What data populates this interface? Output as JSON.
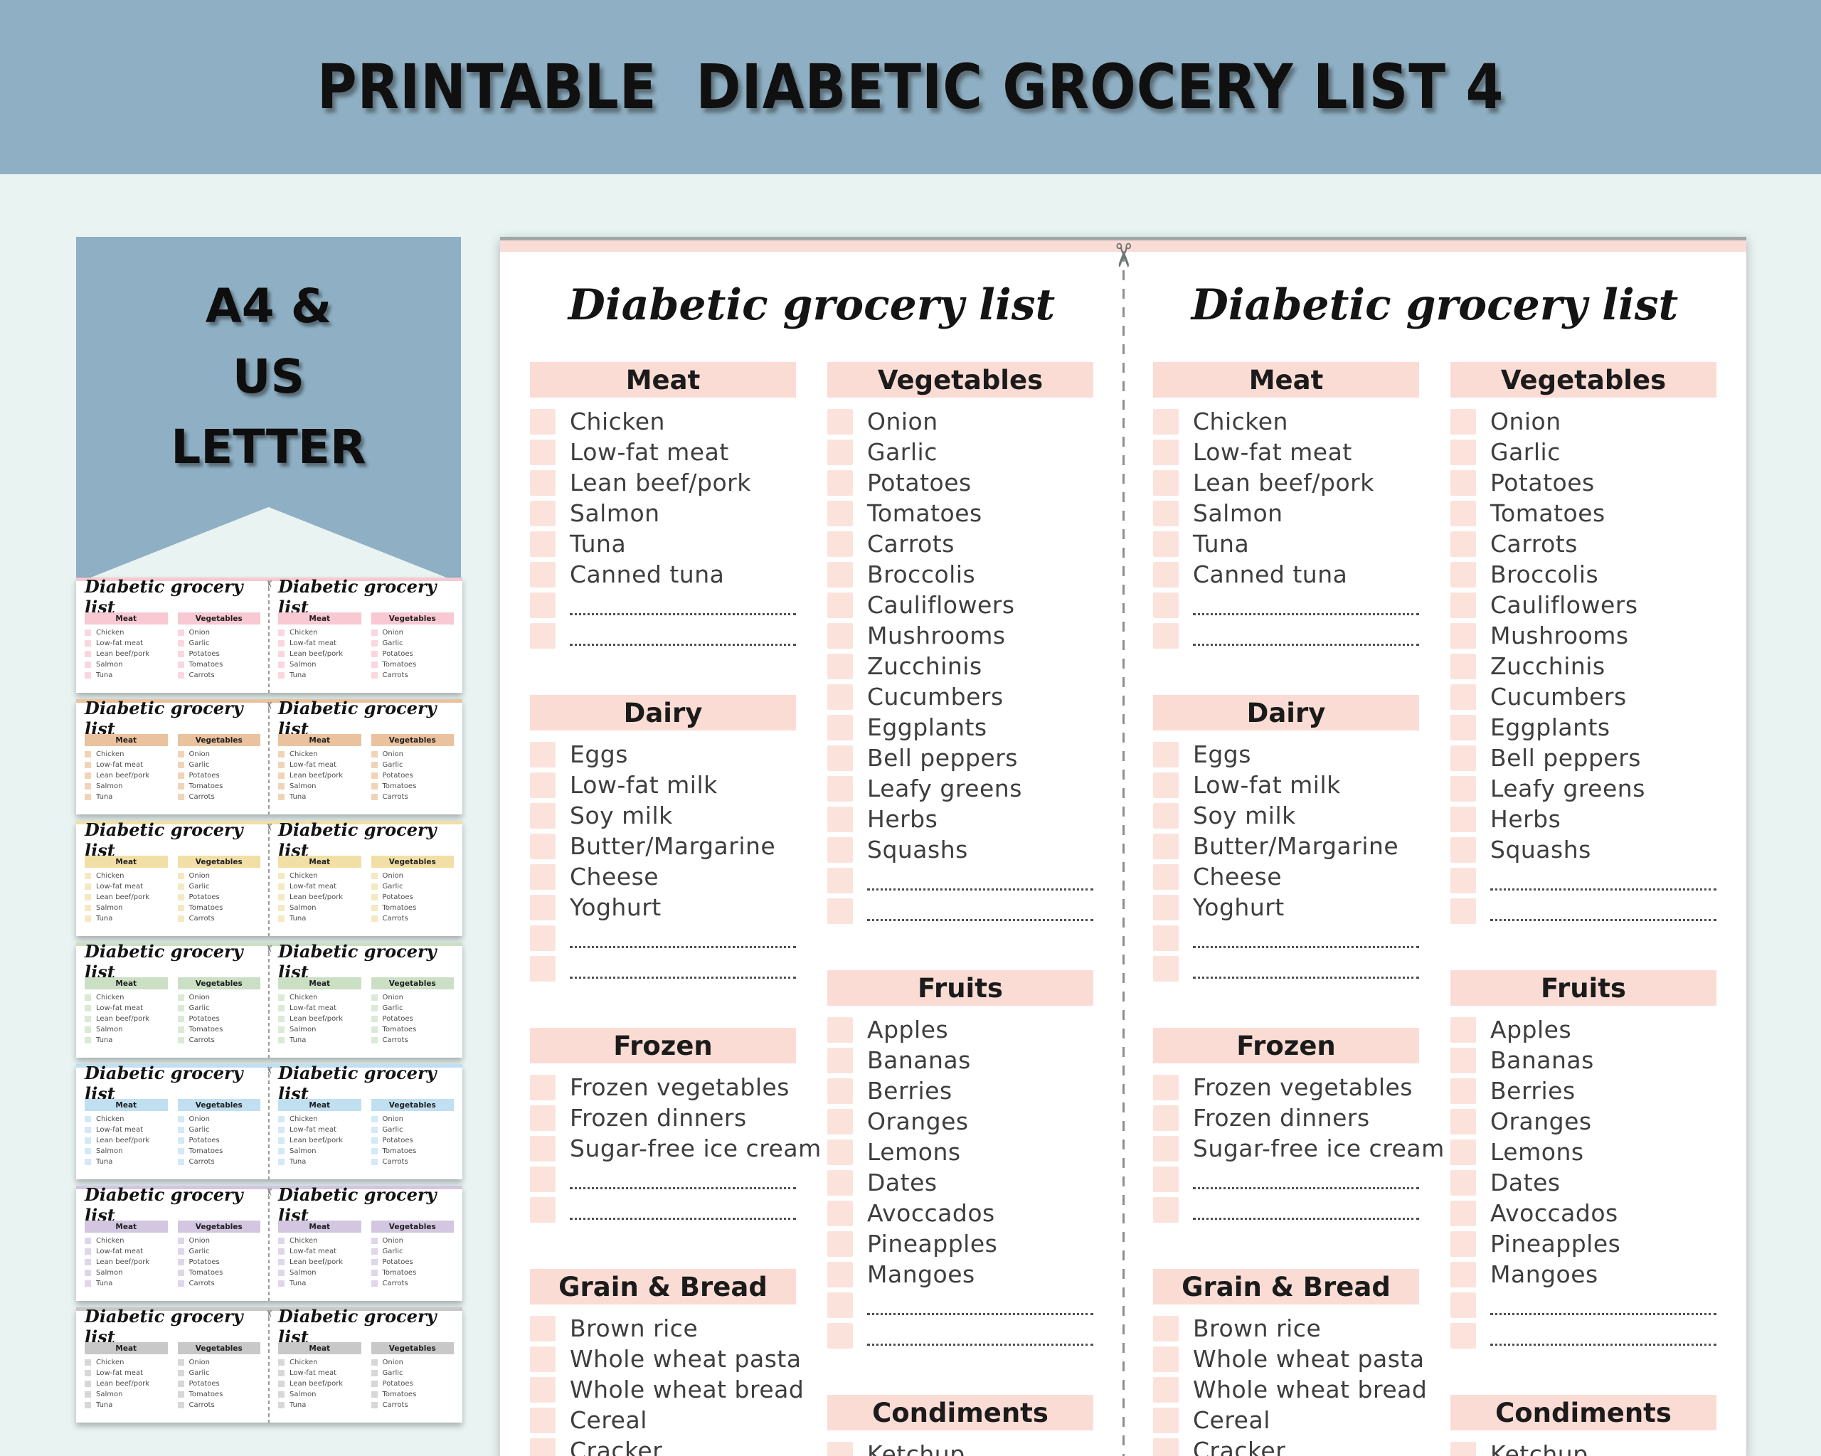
{
  "banner": {
    "title": "PRINTABLE  DIABETIC GROCERY LIST 4"
  },
  "ribbon": {
    "lines": [
      "A4 &",
      "US",
      "LETTER"
    ]
  },
  "icons": {
    "scissors": "✂"
  },
  "colors": {
    "background": "#E8F3F2",
    "banner_bg": "#8FB0C4",
    "ribbon_bg": "#8FB0C4",
    "page_strip": "#FADCD6",
    "section_header_bg": "#FBDCD5",
    "checkbox_bg": "#FBE3DC"
  },
  "page": {
    "title": "Diabetic grocery list",
    "columns": {
      "left": [
        {
          "name": "Meat",
          "items": [
            "Chicken",
            "Low-fat meat",
            "Lean beef/pork",
            "Salmon",
            "Tuna",
            "Canned tuna"
          ],
          "blanks": 2
        },
        {
          "name": "Dairy",
          "items": [
            "Eggs",
            "Low-fat milk",
            "Soy milk",
            "Butter/Margarine",
            "Cheese",
            "Yoghurt"
          ],
          "blanks": 2
        },
        {
          "name": "Frozen",
          "items": [
            "Frozen vegetables",
            "Frozen dinners",
            "Sugar-free ice cream"
          ],
          "blanks": 2
        },
        {
          "name": "Grain & Bread",
          "items": [
            "Brown rice",
            "Whole wheat pasta",
            "Whole wheat bread",
            "Cereal",
            "Cracker"
          ],
          "blanks": 0
        }
      ],
      "right": [
        {
          "name": "Vegetables",
          "items": [
            "Onion",
            "Garlic",
            "Potatoes",
            "Tomatoes",
            "Carrots",
            "Broccolis",
            "Cauliflowers",
            "Mushrooms",
            "Zucchinis",
            "Cucumbers",
            "Eggplants",
            "Bell peppers",
            "Leafy greens",
            "Herbs",
            "Squashs"
          ],
          "blanks": 2
        },
        {
          "name": "Fruits",
          "items": [
            "Apples",
            "Bananas",
            "Berries",
            "Oranges",
            "Lemons",
            "Dates",
            "Avoccados",
            "Pineapples",
            "Mangoes"
          ],
          "blanks": 2
        },
        {
          "name": "Condiments",
          "items": [
            "Ketchup"
          ],
          "blanks": 0
        }
      ]
    }
  },
  "thumbnails": {
    "sections": [
      "Meat",
      "Vegetables"
    ],
    "meat_items": [
      "Chicken",
      "Low-fat meat",
      "Lean beef/pork",
      "Salmon",
      "Tuna"
    ],
    "veg_items": [
      "Onion",
      "Garlic",
      "Potatoes",
      "Tomatoes",
      "Carrots"
    ],
    "variants": [
      {
        "name": "pink",
        "header": "#F8C8D3",
        "checkbox": "#FAD6DE"
      },
      {
        "name": "peach",
        "header": "#EBC29E",
        "checkbox": "#F1D4B8"
      },
      {
        "name": "yellow",
        "header": "#F2DFA5",
        "checkbox": "#F6E9C1"
      },
      {
        "name": "green",
        "header": "#CBDFC5",
        "checkbox": "#DAEAD5"
      },
      {
        "name": "blue",
        "header": "#C0DFF1",
        "checkbox": "#D2E9F6"
      },
      {
        "name": "purple",
        "header": "#D2C6E1",
        "checkbox": "#DFD6EA"
      },
      {
        "name": "gray",
        "header": "#C8C8C8",
        "checkbox": "#D7D7D7"
      }
    ]
  }
}
